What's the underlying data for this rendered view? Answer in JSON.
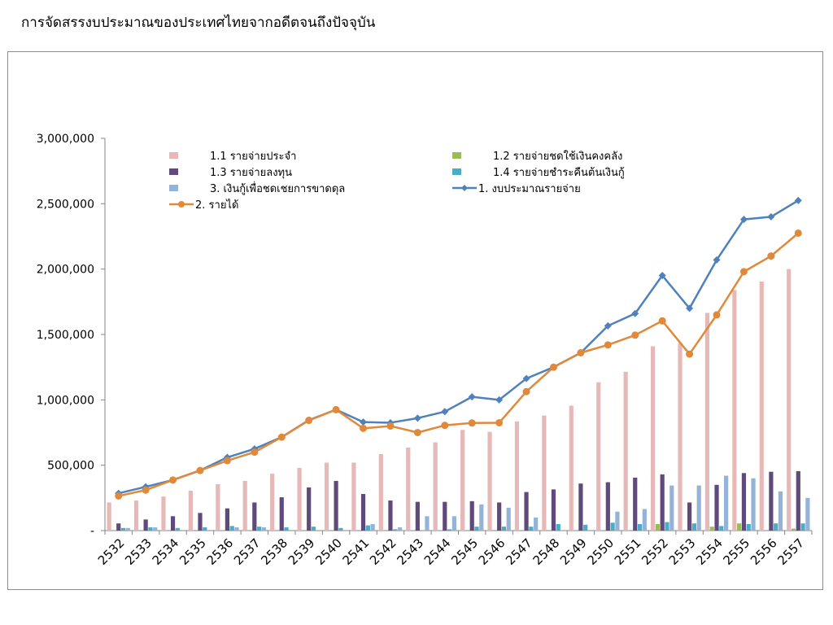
{
  "page": {
    "title": "การจัดสรรงบประมาณของประเทศไทยจากอดีตจนถึงปัจจุบัน"
  },
  "chart_data": {
    "type": "bar",
    "title": "",
    "xlabel": "",
    "ylabel": "",
    "ylim": [
      0,
      3000000
    ],
    "y_ticks": [
      0,
      500000,
      1000000,
      1500000,
      2000000,
      2500000,
      3000000
    ],
    "y_tick_labels": [
      "-",
      "500,000",
      "1,000,000",
      "1,500,000",
      "2,000,000",
      "2,500,000",
      "3,000,000"
    ],
    "grid": false,
    "legend_position": "top-left",
    "categories": [
      "2532",
      "2533",
      "2534",
      "2535",
      "2536",
      "2537",
      "2538",
      "2539",
      "2540",
      "2541",
      "2542",
      "2543",
      "2544",
      "2545",
      "2546",
      "2547",
      "2548",
      "2549",
      "2550",
      "2551",
      "2552",
      "2553",
      "2554",
      "2555",
      "2556",
      "2557"
    ],
    "series": [
      {
        "name": "1.1 รายจ่ายประจำ",
        "kind": "bar",
        "color": "#e6b9b8",
        "values": [
          215000,
          230000,
          260000,
          305000,
          355000,
          380000,
          435000,
          480000,
          520000,
          520000,
          585000,
          635000,
          675000,
          770000,
          755000,
          835000,
          880000,
          955000,
          1135000,
          1215000,
          1410000,
          1435000,
          1665000,
          1840000,
          1905000,
          2000000
        ]
      },
      {
        "name": "1.2 รายจ่ายชดใช้เงินคงคลัง",
        "kind": "bar",
        "color": "#9bbb59",
        "values": [
          0,
          0,
          0,
          0,
          0,
          0,
          0,
          0,
          0,
          0,
          0,
          0,
          0,
          0,
          0,
          0,
          0,
          0,
          0,
          0,
          50000,
          0,
          30000,
          55000,
          0,
          15000
        ]
      },
      {
        "name": "1.3 รายจ่ายลงทุน",
        "kind": "bar",
        "color": "#604a7b",
        "values": [
          55000,
          85000,
          110000,
          135000,
          170000,
          215000,
          255000,
          330000,
          380000,
          280000,
          230000,
          220000,
          220000,
          225000,
          215000,
          295000,
          315000,
          360000,
          370000,
          405000,
          430000,
          215000,
          350000,
          440000,
          450000,
          455000
        ]
      },
      {
        "name": "1.4 รายจ่ายชำระคืนต้นเงินกู้",
        "kind": "bar",
        "color": "#4bacc6",
        "values": [
          20000,
          25000,
          20000,
          25000,
          35000,
          30000,
          25000,
          30000,
          20000,
          40000,
          10000,
          0,
          10000,
          30000,
          30000,
          30000,
          50000,
          45000,
          60000,
          50000,
          65000,
          55000,
          35000,
          50000,
          55000,
          55000
        ]
      },
      {
        "name": "3. เงินกู้เพื่อชดเชยการขาดดุล",
        "kind": "bar",
        "color": "#95b3d7",
        "values": [
          20000,
          25000,
          0,
          0,
          25000,
          25000,
          0,
          0,
          0,
          50000,
          25000,
          110000,
          110000,
          200000,
          175000,
          100000,
          0,
          0,
          145000,
          165000,
          345000,
          345000,
          420000,
          400000,
          300000,
          250000
        ]
      },
      {
        "name": "1. งบประมาณรายจ่าย",
        "kind": "line",
        "color": "#4f81bd",
        "marker": "diamond",
        "values": [
          285000,
          335000,
          387000,
          460000,
          560000,
          625000,
          715000,
          845000,
          925000,
          830000,
          825000,
          860000,
          910000,
          1023000,
          1000000,
          1163000,
          1250000,
          1360000,
          1566000,
          1660000,
          1951000,
          1700000,
          2070000,
          2380000,
          2400000,
          2525000
        ]
      },
      {
        "name": "2. รายได้",
        "kind": "line",
        "color": "#e0893a",
        "marker": "circle",
        "values": [
          265000,
          310000,
          387000,
          460000,
          535000,
          600000,
          715000,
          843000,
          925000,
          782000,
          800000,
          750000,
          805000,
          823000,
          825000,
          1063000,
          1250000,
          1360000,
          1420000,
          1495000,
          1604000,
          1350000,
          1650000,
          1980000,
          2100000,
          2275000
        ]
      }
    ],
    "legend": [
      {
        "series": 0,
        "label": "1.1 รายจ่ายประจำ"
      },
      {
        "series": 1,
        "label": "1.2 รายจ่ายชดใช้เงินคงคลัง"
      },
      {
        "series": 2,
        "label": "1.3 รายจ่ายลงทุน"
      },
      {
        "series": 3,
        "label": "1.4 รายจ่ายชำระคืนต้นเงินกู้"
      },
      {
        "series": 4,
        "label": "3. เงินกู้เพื่อชดเชยการขาดดุล"
      },
      {
        "series": 5,
        "label": "1. งบประมาณรายจ่าย"
      },
      {
        "series": 6,
        "label": "2. รายได้"
      }
    ]
  }
}
